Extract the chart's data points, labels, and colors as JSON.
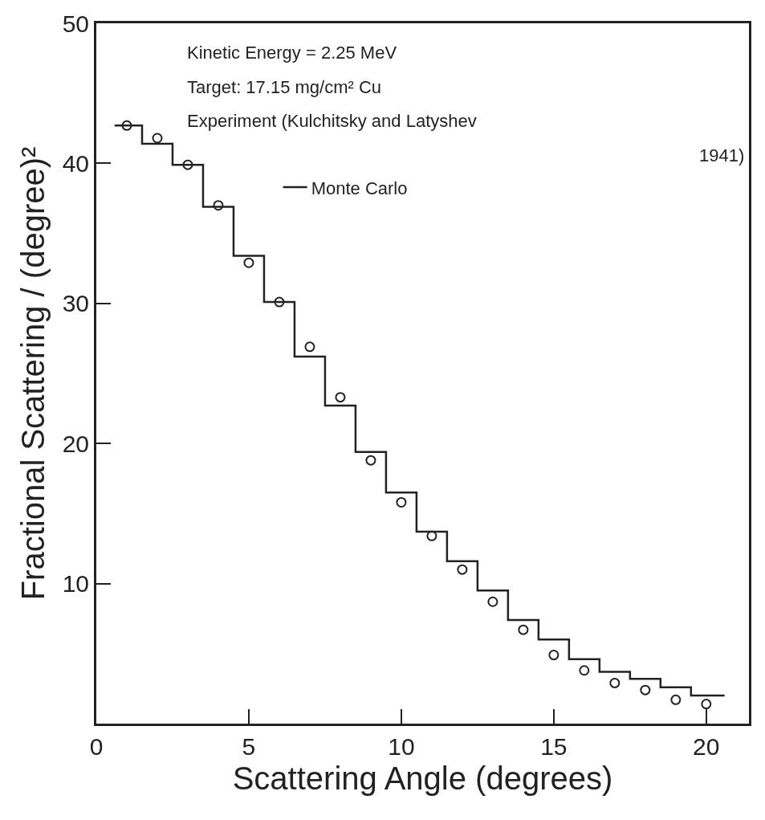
{
  "chart_data": {
    "type": "scatter",
    "xlabel": "Scattering Angle (degrees)",
    "ylabel": "Fractional Scattering / (degree)²",
    "xlim": [
      0,
      21.4
    ],
    "ylim": [
      0,
      50
    ],
    "xticks": [
      0,
      5,
      10,
      15,
      20
    ],
    "yticks": [
      10,
      20,
      30,
      40,
      50
    ],
    "legend": "top",
    "annotations": [
      "Kinetic Energy = 2.25 MeV",
      "Target: 17.15 mg/cm² Cu",
      "Experiment (Kulchitsky and Latyshev",
      "1941)"
    ],
    "series": [
      {
        "marker": "circle",
        "color": "#222222",
        "x": [
          1,
          2,
          3,
          4,
          5,
          6,
          7,
          8,
          9,
          10,
          11,
          12,
          13,
          14,
          15,
          16,
          17,
          18,
          19,
          20
        ],
        "values": [
          42.7,
          41.8,
          39.9,
          37.0,
          32.9,
          30.1,
          26.9,
          23.3,
          18.8,
          15.8,
          13.4,
          11.0,
          8.7,
          6.7,
          4.9,
          3.8,
          2.9,
          2.4,
          1.7,
          1.4
        ]
      },
      {
        "type": "step",
        "name": "Monte Carlo",
        "color": "#222222",
        "x": [
          0.6,
          1.5,
          2.5,
          3.5,
          4.5,
          5.5,
          6.5,
          7.5,
          8.5,
          9.5,
          10.5,
          11.5,
          12.5,
          13.5,
          14.5,
          15.5,
          16.5,
          17.5,
          18.5,
          19.5,
          20.6
        ],
        "values": [
          42.7,
          41.4,
          39.9,
          36.9,
          33.4,
          30.1,
          26.2,
          22.7,
          19.4,
          16.5,
          13.7,
          11.6,
          9.5,
          7.4,
          6.0,
          4.6,
          3.7,
          3.2,
          2.6,
          2.0,
          2.0
        ]
      }
    ]
  }
}
